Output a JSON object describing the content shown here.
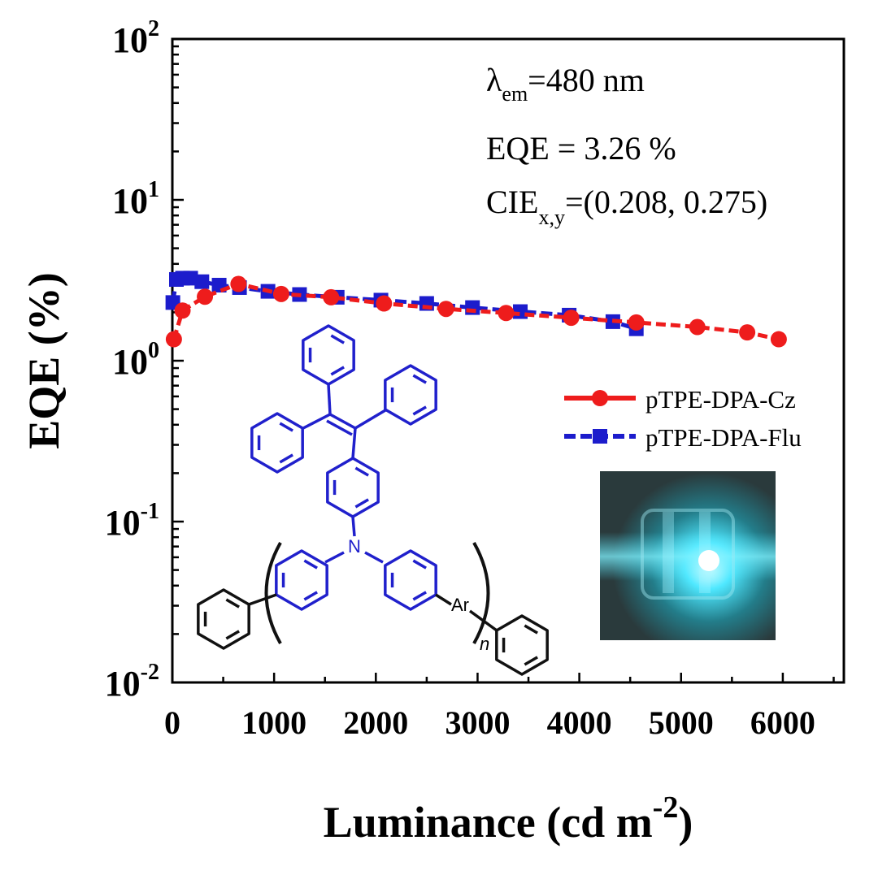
{
  "chart_data": {
    "type": "line",
    "xlabel_main": "Luminance (cd m",
    "xlabel_sup": "-2",
    "xlabel_close": ")",
    "ylabel": "EQE (%)",
    "x_range": [
      0,
      6600
    ],
    "y_range": [
      0.01,
      100
    ],
    "y_scale": "log",
    "x_ticks": [
      "0",
      "1000",
      "2000",
      "3000",
      "4000",
      "5000",
      "6000"
    ],
    "x_tick_values": [
      0,
      1000,
      2000,
      3000,
      4000,
      5000,
      6000
    ],
    "y_ticks": [
      {
        "value": 100,
        "base": "10",
        "exp": "2"
      },
      {
        "value": 10,
        "base": "10",
        "exp": "1"
      },
      {
        "value": 1,
        "base": "10",
        "exp": "0"
      },
      {
        "value": 0.1,
        "base": "10",
        "exp": "-1"
      },
      {
        "value": 0.01,
        "base": "10",
        "exp": "-2"
      }
    ],
    "annotations": {
      "lambda_symbol": "λ",
      "lambda_sub": "em",
      "lambda_value": "=480 nm",
      "eqe": "EQE = 3.26 %",
      "cie_prefix": "CIE",
      "cie_sub": "x,y",
      "cie_value": "=(0.208, 0.275)"
    },
    "legend_position": "center-right",
    "series": [
      {
        "name": "pTPE-DPA-Cz",
        "color": "#ee1c1c",
        "marker": "circle",
        "points": [
          [
            15,
            1.36
          ],
          [
            100,
            2.05
          ],
          [
            320,
            2.5
          ],
          [
            650,
            3.0
          ],
          [
            1070,
            2.6
          ],
          [
            1560,
            2.48
          ],
          [
            2080,
            2.27
          ],
          [
            2690,
            2.1
          ],
          [
            3280,
            1.98
          ],
          [
            3920,
            1.85
          ],
          [
            4560,
            1.73
          ],
          [
            5160,
            1.62
          ],
          [
            5650,
            1.5
          ],
          [
            5960,
            1.36
          ]
        ]
      },
      {
        "name": "pTPE-DPA-Flu",
        "color": "#1c1ccc",
        "marker": "square",
        "points": [
          [
            5,
            2.3
          ],
          [
            40,
            3.2
          ],
          [
            100,
            3.26
          ],
          [
            180,
            3.26
          ],
          [
            290,
            3.1
          ],
          [
            460,
            2.95
          ],
          [
            660,
            2.85
          ],
          [
            940,
            2.7
          ],
          [
            1250,
            2.58
          ],
          [
            1620,
            2.48
          ],
          [
            2050,
            2.38
          ],
          [
            2500,
            2.27
          ],
          [
            2950,
            2.14
          ],
          [
            3420,
            2.02
          ],
          [
            3900,
            1.92
          ],
          [
            4330,
            1.75
          ],
          [
            4560,
            1.58
          ]
        ]
      }
    ],
    "molecule": {
      "nitrogen_label": "N",
      "ar_label": "Ar",
      "n_label": "n"
    }
  },
  "inset_photo": {
    "description_icon": "device-photo",
    "background_color": "#2a3a3c",
    "glow_color": "#4fe8ff"
  }
}
